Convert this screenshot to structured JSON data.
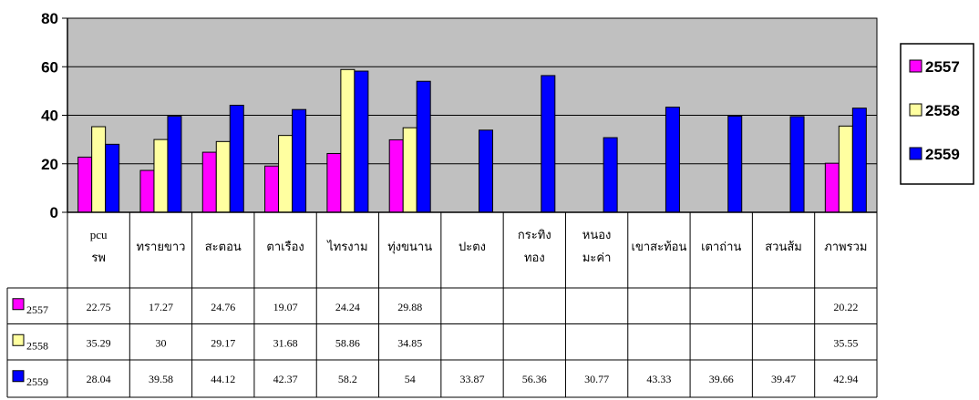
{
  "chart_data": {
    "type": "bar",
    "categories": [
      "pcu รพ",
      "ทรายขาว",
      "สะตอน",
      "ตาเรือง",
      "ไทรงาม",
      "ทุ่งขนาน",
      "ปะตง",
      "กระทิง ทอง",
      "หนอง มะค่า",
      "เขาสะท้อน",
      "เตาถ่าน",
      "สวนส้ม",
      "ภาพรวม"
    ],
    "series": [
      {
        "name": "2557",
        "color": "#ff00ff",
        "values": [
          22.75,
          17.27,
          24.76,
          19.07,
          24.24,
          29.88,
          null,
          null,
          null,
          null,
          null,
          null,
          20.22
        ]
      },
      {
        "name": "2558",
        "color": "#ffffa0",
        "values": [
          35.29,
          30,
          29.17,
          31.68,
          58.86,
          34.85,
          null,
          null,
          null,
          null,
          null,
          null,
          35.55
        ]
      },
      {
        "name": "2559",
        "color": "#0000ff",
        "values": [
          28.04,
          39.58,
          44.12,
          42.37,
          58.2,
          54,
          33.87,
          56.36,
          30.77,
          43.33,
          39.66,
          39.47,
          42.94
        ]
      }
    ],
    "table_values": [
      [
        "22.75",
        "17.27",
        "24.76",
        "19.07",
        "24.24",
        "29.88",
        "",
        "",
        "",
        "",
        "",
        "",
        "20.22"
      ],
      [
        "35.29",
        "30",
        "29.17",
        "31.68",
        "58.86",
        "34.85",
        "",
        "",
        "",
        "",
        "",
        "",
        "35.55"
      ],
      [
        "28.04",
        "39.58",
        "44.12",
        "42.37",
        "58.2",
        "54",
        "33.87",
        "56.36",
        "30.77",
        "43.33",
        "39.66",
        "39.47",
        "42.94"
      ]
    ],
    "yticks": [
      "0",
      "20",
      "40",
      "60",
      "80"
    ],
    "ylim": [
      0,
      80
    ],
    "grid": true,
    "legend": "right",
    "plot_background": "#c0c0c0",
    "title": "",
    "xlabel": "",
    "ylabel": ""
  }
}
